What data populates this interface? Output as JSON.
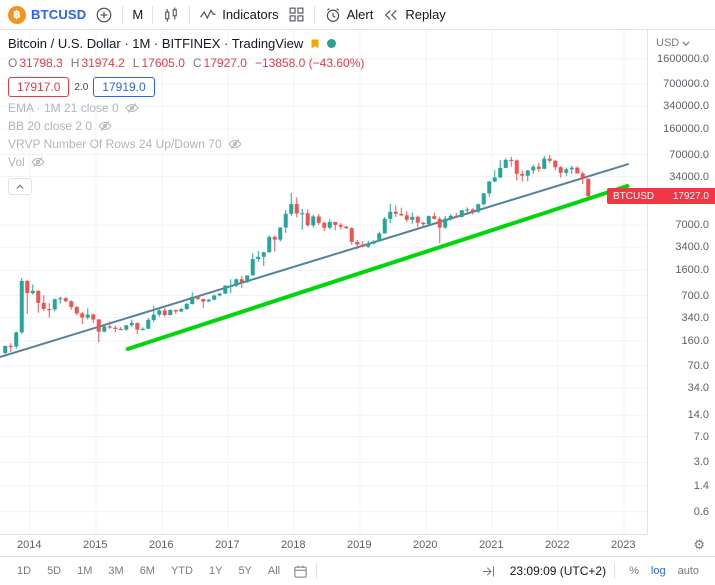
{
  "top_toolbar": {
    "symbol": "BTCUSD",
    "interval": "M",
    "indicators_label": "Indicators",
    "alert_label": "Alert",
    "replay_label": "Replay"
  },
  "chart_header": {
    "title": "Bitcoin / U.S. Dollar · 1M · BITFINEX · TradingView",
    "ohlc": {
      "o": "O",
      "o_val": "31798.3",
      "h": "H",
      "h_val": "31974.2",
      "l": "L",
      "l_val": "17605.0",
      "c": "C",
      "c_val": "17927.0",
      "change": "−13858.0 (−43.60%)"
    },
    "bid": "17917.0",
    "spread": "2.0",
    "ask": "17919.0",
    "indicators": [
      "EMA · 1M 21 close 0",
      "BB 20 close 2 0",
      "VRVP Number Of Rows 24 Up/Down 70",
      "Vol"
    ]
  },
  "price_scale": {
    "currency": "USD",
    "ticks": [
      "1600000.0",
      "700000.0",
      "340000.0",
      "160000.0",
      "70000.0",
      "34000.0",
      "7000.0",
      "3400.0",
      "1600.0",
      "700.0",
      "340.0",
      "160.0",
      "70.0",
      "34.0",
      "14.0",
      "7.0",
      "3.0",
      "1.4",
      "0.6"
    ],
    "price_label": {
      "symbol": "BTCUSD",
      "price": "17927.0"
    }
  },
  "time_scale": {
    "years": [
      "2014",
      "2015",
      "2016",
      "2017",
      "2018",
      "2019",
      "2020",
      "2021",
      "2022",
      "2023"
    ]
  },
  "bottom_toolbar": {
    "ranges": [
      "1D",
      "5D",
      "1M",
      "3M",
      "6M",
      "YTD",
      "1Y",
      "5Y",
      "All"
    ],
    "clock": "23:09:09 (UTC+2)",
    "percent_label": "%",
    "log_label": "log",
    "auto_label": "auto"
  },
  "chart_data": {
    "type": "candlestick",
    "title": "Bitcoin / U.S. Dollar",
    "symbol": "BTCUSD",
    "exchange": "BITFINEX",
    "interval": "1M",
    "y_scale": "log",
    "ylim": [
      0.5,
      2000000
    ],
    "x_years": [
      2013.5,
      2023.2
    ],
    "grid": true,
    "last_bar": {
      "open": 31798.3,
      "high": 31974.2,
      "low": 17605.0,
      "close": 17927.0,
      "change": -13858.0,
      "change_pct": -43.6
    },
    "colors": {
      "up": "#26a69a",
      "down": "#ef5350",
      "trend_teal": "#54819b",
      "trend_green": "#00d60a",
      "grid": "#f0f3fa"
    },
    "trendlines": [
      {
        "name": "long-term-support",
        "color": "#54819b",
        "width": 2,
        "points": [
          [
            2013.55,
            94
          ],
          [
            2023.06,
            51000
          ]
        ]
      },
      {
        "name": "green-support",
        "color": "#00d60a",
        "width": 4,
        "points": [
          [
            2015.48,
            122
          ],
          [
            2023.05,
            25000
          ]
        ]
      }
    ],
    "candles": [
      [
        2013,
        8,
        107,
        135,
        100,
        135
      ],
      [
        2013,
        9,
        135,
        147,
        110,
        132
      ],
      [
        2013,
        10,
        132,
        216,
        123,
        210
      ],
      [
        2013,
        11,
        210,
        1240,
        200,
        1125
      ],
      [
        2013,
        12,
        1125,
        1160,
        382,
        755
      ],
      [
        2014,
        1,
        755,
        1000,
        720,
        815
      ],
      [
        2014,
        2,
        815,
        830,
        400,
        550
      ],
      [
        2014,
        3,
        550,
        710,
        420,
        450
      ],
      [
        2014,
        4,
        450,
        545,
        340,
        445
      ],
      [
        2014,
        5,
        445,
        630,
        420,
        620
      ],
      [
        2014,
        6,
        620,
        675,
        540,
        640
      ],
      [
        2014,
        7,
        640,
        660,
        560,
        580
      ],
      [
        2014,
        8,
        580,
        600,
        440,
        480
      ],
      [
        2014,
        9,
        480,
        495,
        365,
        390
      ],
      [
        2014,
        10,
        390,
        410,
        275,
        340
      ],
      [
        2014,
        11,
        340,
        460,
        320,
        375
      ],
      [
        2014,
        12,
        375,
        385,
        285,
        320
      ],
      [
        2015,
        1,
        320,
        325,
        152,
        215
      ],
      [
        2015,
        2,
        215,
        265,
        210,
        255
      ],
      [
        2015,
        3,
        255,
        300,
        235,
        245
      ],
      [
        2015,
        4,
        245,
        262,
        210,
        235
      ],
      [
        2015,
        5,
        235,
        250,
        225,
        230
      ],
      [
        2015,
        6,
        230,
        268,
        220,
        265
      ],
      [
        2015,
        7,
        265,
        318,
        250,
        285
      ],
      [
        2015,
        8,
        285,
        290,
        198,
        230
      ],
      [
        2015,
        9,
        230,
        248,
        223,
        236
      ],
      [
        2015,
        10,
        236,
        335,
        235,
        315
      ],
      [
        2015,
        11,
        315,
        500,
        295,
        375
      ],
      [
        2015,
        12,
        375,
        470,
        350,
        430
      ],
      [
        2016,
        1,
        430,
        465,
        350,
        370
      ],
      [
        2016,
        2,
        370,
        445,
        365,
        437
      ],
      [
        2016,
        3,
        437,
        440,
        385,
        415
      ],
      [
        2016,
        4,
        415,
        470,
        410,
        450
      ],
      [
        2016,
        5,
        450,
        550,
        440,
        530
      ],
      [
        2016,
        6,
        530,
        780,
        520,
        670
      ],
      [
        2016,
        7,
        670,
        705,
        600,
        625
      ],
      [
        2016,
        8,
        625,
        630,
        465,
        575
      ],
      [
        2016,
        9,
        575,
        630,
        565,
        610
      ],
      [
        2016,
        10,
        610,
        720,
        600,
        700
      ],
      [
        2016,
        11,
        700,
        755,
        680,
        745
      ],
      [
        2016,
        12,
        745,
        980,
        740,
        965
      ],
      [
        2017,
        1,
        965,
        1190,
        750,
        965
      ],
      [
        2017,
        2,
        965,
        1220,
        920,
        1190
      ],
      [
        2017,
        3,
        1190,
        1330,
        890,
        1080
      ],
      [
        2017,
        4,
        1080,
        1350,
        1060,
        1350
      ],
      [
        2017,
        5,
        1350,
        2760,
        1340,
        2300
      ],
      [
        2017,
        6,
        2300,
        3000,
        2100,
        2480
      ],
      [
        2017,
        7,
        2480,
        2920,
        1830,
        2875
      ],
      [
        2017,
        8,
        2875,
        4980,
        2840,
        4740
      ],
      [
        2017,
        9,
        4740,
        4980,
        2950,
        4340
      ],
      [
        2017,
        10,
        4340,
        6500,
        4100,
        6450
      ],
      [
        2017,
        11,
        6450,
        11400,
        5400,
        10100
      ],
      [
        2017,
        12,
        10100,
        19900,
        9400,
        13850
      ],
      [
        2018,
        1,
        13850,
        17200,
        9000,
        10200
      ],
      [
        2018,
        2,
        10200,
        11800,
        6000,
        10300
      ],
      [
        2018,
        3,
        10300,
        11700,
        6600,
        6930
      ],
      [
        2018,
        4,
        6930,
        9760,
        6430,
        9245
      ],
      [
        2018,
        5,
        9245,
        9990,
        7040,
        7500
      ],
      [
        2018,
        6,
        7500,
        7780,
        5780,
        6400
      ],
      [
        2018,
        7,
        6400,
        8500,
        6070,
        7730
      ],
      [
        2018,
        8,
        7730,
        7760,
        5880,
        7030
      ],
      [
        2018,
        9,
        7030,
        7410,
        6100,
        6625
      ],
      [
        2018,
        10,
        6625,
        6830,
        6200,
        6300
      ],
      [
        2018,
        11,
        6300,
        6540,
        3650,
        4040
      ],
      [
        2018,
        12,
        4040,
        4310,
        3150,
        3700
      ],
      [
        2019,
        1,
        3700,
        4120,
        3350,
        3440
      ],
      [
        2019,
        2,
        3440,
        4210,
        3330,
        3815
      ],
      [
        2019,
        3,
        3815,
        4290,
        3700,
        4100
      ],
      [
        2019,
        4,
        4100,
        5650,
        4070,
        5320
      ],
      [
        2019,
        5,
        5320,
        9100,
        5270,
        8560
      ],
      [
        2019,
        6,
        8560,
        13900,
        7450,
        10800
      ],
      [
        2019,
        7,
        10800,
        13200,
        9080,
        10080
      ],
      [
        2019,
        8,
        10080,
        12320,
        9350,
        9600
      ],
      [
        2019,
        9,
        9600,
        10950,
        7700,
        8300
      ],
      [
        2019,
        10,
        8300,
        10540,
        7290,
        9150
      ],
      [
        2019,
        11,
        9150,
        9550,
        6520,
        7550
      ],
      [
        2019,
        12,
        7550,
        7770,
        6430,
        7200
      ],
      [
        2020,
        1,
        7200,
        9570,
        6850,
        9350
      ],
      [
        2020,
        2,
        9350,
        10500,
        8400,
        8550
      ],
      [
        2020,
        3,
        8550,
        9180,
        3850,
        6440
      ],
      [
        2020,
        4,
        6440,
        9460,
        6150,
        8620
      ],
      [
        2020,
        5,
        8620,
        10070,
        8100,
        9450
      ],
      [
        2020,
        6,
        9450,
        10380,
        8830,
        9135
      ],
      [
        2020,
        7,
        9135,
        11450,
        8900,
        11350
      ],
      [
        2020,
        8,
        11350,
        12480,
        10550,
        11650
      ],
      [
        2020,
        9,
        11650,
        12060,
        9820,
        10780
      ],
      [
        2020,
        10,
        10780,
        14100,
        10380,
        13800
      ],
      [
        2020,
        11,
        13800,
        19860,
        13200,
        19700
      ],
      [
        2020,
        12,
        19700,
        29300,
        17600,
        29000
      ],
      [
        2021,
        1,
        29000,
        42000,
        28130,
        33100
      ],
      [
        2021,
        2,
        33100,
        58350,
        32300,
        45200
      ],
      [
        2021,
        3,
        45200,
        61800,
        45000,
        58800
      ],
      [
        2021,
        4,
        58800,
        64900,
        46930,
        57750
      ],
      [
        2021,
        5,
        57750,
        59500,
        30000,
        37300
      ],
      [
        2021,
        6,
        37300,
        41330,
        28800,
        35000
      ],
      [
        2021,
        7,
        35000,
        42400,
        29300,
        41500
      ],
      [
        2021,
        8,
        41500,
        50500,
        37330,
        47100
      ],
      [
        2021,
        9,
        47100,
        52950,
        39600,
        43800
      ],
      [
        2021,
        10,
        43800,
        67000,
        43300,
        61300
      ],
      [
        2021,
        11,
        61300,
        69000,
        53300,
        57000
      ],
      [
        2021,
        12,
        57000,
        59100,
        42000,
        46200
      ],
      [
        2022,
        1,
        46200,
        47990,
        32950,
        38480
      ],
      [
        2022,
        2,
        38480,
        45820,
        34320,
        43200
      ],
      [
        2022,
        3,
        43200,
        48240,
        37160,
        45540
      ],
      [
        2022,
        4,
        45540,
        47450,
        37580,
        37650
      ],
      [
        2022,
        5,
        37650,
        40020,
        26700,
        31800
      ],
      [
        2022,
        6,
        31798.3,
        31974.2,
        17605.0,
        17927.0
      ]
    ]
  }
}
